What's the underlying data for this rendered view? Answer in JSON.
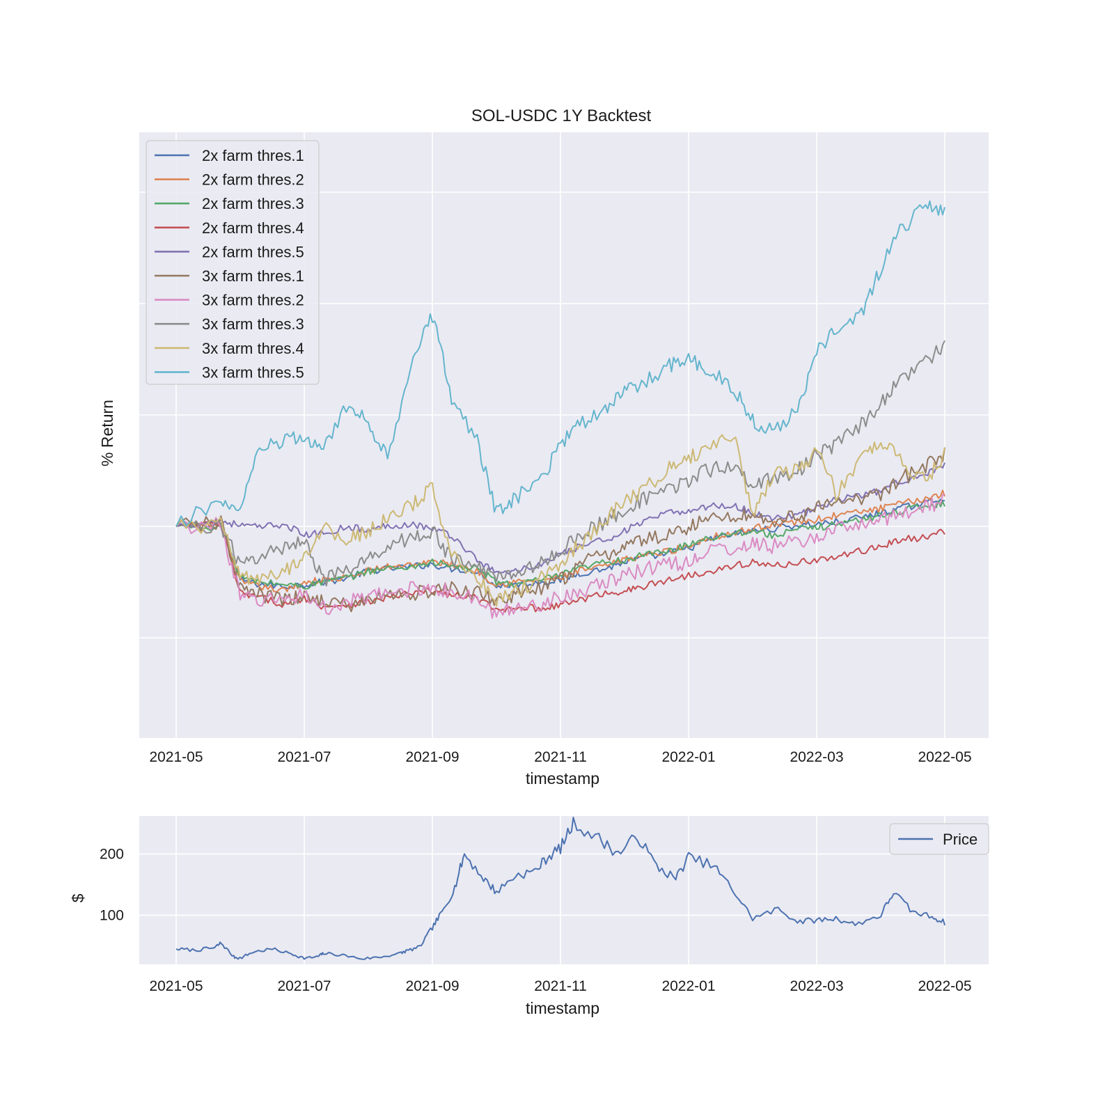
{
  "chart_data": [
    {
      "type": "line",
      "title": "SOL-USDC 1Y Backtest",
      "xlabel": "timestamp",
      "ylabel": "% Return",
      "x_tick_labels": [
        "2021-05",
        "2021-07",
        "2021-09",
        "2021-11",
        "2022-01",
        "2022-03",
        "2022-05"
      ],
      "y_tick_labels": [],
      "grid": true,
      "legend_position": "top-left",
      "note_values": "relative index, y tick labels not printed (start = 0)",
      "x_months": [
        0,
        0.7,
        1,
        1.3,
        1.7,
        2,
        2.3,
        2.7,
        3,
        3.3,
        3.7,
        4,
        4.3,
        4.7,
        5,
        5.3,
        5.7,
        6,
        6.3,
        6.7,
        7,
        7.3,
        7.7,
        8,
        8.3,
        8.7,
        9,
        9.3,
        9.7,
        10,
        10.3,
        10.7,
        11,
        11.3,
        11.7,
        12
      ],
      "series": [
        {
          "name": "2x farm thres.1",
          "color": "#4c72b0",
          "values": [
            0,
            0.05,
            -2.4,
            -2.6,
            -2.7,
            -2.6,
            -2.5,
            -2.3,
            -2.0,
            -1.9,
            -1.8,
            -1.7,
            -1.9,
            -2.0,
            -2.7,
            -2.6,
            -2.5,
            -2.4,
            -2.1,
            -1.9,
            -1.6,
            -1.4,
            -1.2,
            -1.0,
            -0.6,
            -0.35,
            -0.2,
            -0.1,
            0.05,
            0.1,
            0.2,
            0.4,
            0.6,
            0.8,
            1.05,
            1.3
          ]
        },
        {
          "name": "2x farm thres.2",
          "color": "#dd8452",
          "values": [
            0,
            0.1,
            -2.5,
            -2.7,
            -2.9,
            -2.5,
            -2.4,
            -2.3,
            -2.0,
            -1.8,
            -1.7,
            -1.6,
            -1.7,
            -2.0,
            -2.6,
            -2.5,
            -2.4,
            -2.3,
            -2.0,
            -1.8,
            -1.5,
            -1.3,
            -1.1,
            -0.9,
            -0.5,
            -0.3,
            -0.1,
            0.1,
            0.2,
            0.3,
            0.5,
            0.65,
            0.8,
            1.0,
            1.25,
            1.5
          ]
        },
        {
          "name": "2x farm thres.3",
          "color": "#55a868",
          "values": [
            0,
            -0.05,
            -2.3,
            -2.5,
            -2.6,
            -2.7,
            -2.5,
            -2.3,
            -2.0,
            -1.9,
            -1.8,
            -1.6,
            -1.8,
            -1.9,
            -2.5,
            -2.6,
            -2.4,
            -2.2,
            -1.9,
            -1.6,
            -1.5,
            -1.3,
            -1.1,
            -0.8,
            -0.5,
            -0.3,
            -0.2,
            -0.4,
            -0.15,
            -0.05,
            0.1,
            0.3,
            0.5,
            0.7,
            0.9,
            1.05
          ]
        },
        {
          "name": "2x farm thres.4",
          "color": "#c44e52",
          "values": [
            0,
            0.1,
            -3.0,
            -3.2,
            -3.5,
            -3.2,
            -3.6,
            -3.5,
            -3.4,
            -3.2,
            -3.0,
            -2.9,
            -3.1,
            -3.2,
            -3.8,
            -3.6,
            -3.7,
            -3.5,
            -3.3,
            -3.0,
            -2.9,
            -2.7,
            -2.4,
            -2.2,
            -2.0,
            -1.8,
            -1.6,
            -1.8,
            -1.6,
            -1.5,
            -1.4,
            -1.1,
            -0.9,
            -0.6,
            -0.5,
            -0.2
          ]
        },
        {
          "name": "2x farm thres.5",
          "color": "#8172b3",
          "values": [
            0,
            0.25,
            0.05,
            -0.05,
            0.1,
            -0.4,
            -0.3,
            0.0,
            -0.2,
            0.05,
            0.1,
            -0.1,
            -0.4,
            -1.5,
            -2.1,
            -2.0,
            -1.7,
            -1.3,
            -0.9,
            -0.6,
            -0.2,
            0.2,
            0.6,
            0.7,
            0.9,
            0.95,
            0.6,
            0.4,
            0.5,
            0.8,
            1.2,
            1.4,
            1.6,
            2.0,
            2.4,
            2.7
          ]
        },
        {
          "name": "3x farm thres.1",
          "color": "#937860",
          "values": [
            0,
            0.15,
            -2.8,
            -3.1,
            -3.3,
            -3.2,
            -3.3,
            -3.6,
            -3.3,
            -3.1,
            -3.0,
            -2.9,
            -2.8,
            -3.0,
            -3.3,
            -3.1,
            -2.8,
            -2.4,
            -1.7,
            -1.3,
            -0.9,
            -0.6,
            -0.4,
            0.0,
            0.3,
            0.5,
            0.5,
            0.2,
            0.5,
            0.8,
            1.0,
            1.3,
            1.5,
            2.1,
            2.7,
            3.2
          ]
        },
        {
          "name": "3x farm thres.2",
          "color": "#da8bc3",
          "values": [
            0,
            0.05,
            -3.2,
            -3.3,
            -3.3,
            -3.0,
            -3.7,
            -3.4,
            -3.2,
            -3.0,
            -2.8,
            -2.7,
            -3.0,
            -3.3,
            -4.0,
            -3.6,
            -3.5,
            -3.1,
            -2.9,
            -2.6,
            -2.2,
            -1.9,
            -1.7,
            -1.6,
            -1.1,
            -1.0,
            -0.8,
            -0.9,
            -0.7,
            -0.5,
            -0.1,
            0.0,
            0.3,
            0.6,
            0.9,
            1.1
          ]
        },
        {
          "name": "3x farm thres.3",
          "color": "#8c8c8c",
          "values": [
            0,
            0.05,
            -1.8,
            -1.3,
            -1.0,
            -0.5,
            -2.4,
            -2.0,
            -1.5,
            -0.8,
            -0.5,
            -0.2,
            -1.5,
            -1.8,
            -2.3,
            -2.0,
            -1.7,
            -1.1,
            -0.4,
            0.2,
            0.8,
            1.2,
            1.6,
            2.1,
            2.5,
            2.8,
            1.9,
            2.1,
            2.5,
            3.2,
            3.6,
            4.6,
            5.5,
            6.6,
            7.5,
            8.0
          ]
        },
        {
          "name": "3x farm thres.4",
          "color": "#ccb974",
          "values": [
            0,
            0.05,
            -2.2,
            -2.5,
            -2.0,
            -1.3,
            -0.1,
            -0.6,
            -0.2,
            0.3,
            1.0,
            1.7,
            -1.2,
            -2.3,
            -3.3,
            -2.9,
            -2.3,
            -1.6,
            -0.8,
            0.3,
            1.1,
            1.7,
            2.6,
            3.0,
            3.6,
            4.2,
            0.5,
            2.3,
            2.5,
            3.4,
            1.5,
            3.0,
            3.9,
            3.0,
            2.0,
            3.2
          ]
        },
        {
          "name": "3x farm thres.5",
          "color": "#64b5cd",
          "values": [
            0,
            1.2,
            0.6,
            3.5,
            3.8,
            4.0,
            3.5,
            5.5,
            4.6,
            3.2,
            7.5,
            9.5,
            5.8,
            3.8,
            0.6,
            1.3,
            2.1,
            3.7,
            4.6,
            5.3,
            6.0,
            6.5,
            7.2,
            7.7,
            6.9,
            6.3,
            4.7,
            4.3,
            5.2,
            7.8,
            8.9,
            9.6,
            11.6,
            13.2,
            14.5,
            14.0
          ]
        }
      ]
    },
    {
      "type": "line",
      "title": "",
      "xlabel": "timestamp",
      "ylabel": "$",
      "x_tick_labels": [
        "2021-05",
        "2021-07",
        "2021-09",
        "2021-11",
        "2022-01",
        "2022-03",
        "2022-05"
      ],
      "y_ticks": [
        100,
        200
      ],
      "ylim": [
        20,
        262
      ],
      "grid": true,
      "legend_position": "top-right",
      "x_months": [
        0,
        0.3,
        0.6,
        0.7,
        0.9,
        1.0,
        1.2,
        1.5,
        1.8,
        2.0,
        2.2,
        2.3,
        2.6,
        2.9,
        3.2,
        3.5,
        3.6,
        3.8,
        4.0,
        4.15,
        4.35,
        4.5,
        4.8,
        5.0,
        5.3,
        5.6,
        5.8,
        6.0,
        6.2,
        6.6,
        6.9,
        7.2,
        7.5,
        7.8,
        8.0,
        8.4,
        8.7,
        9.0,
        9.4,
        9.7,
        10.0,
        10.3,
        10.6,
        11.0,
        11.2,
        11.5,
        11.8,
        12.0
      ],
      "series": [
        {
          "name": "Price",
          "color": "#4c72b0",
          "values": [
            45,
            43,
            47,
            55,
            32,
            30,
            40,
            45,
            37,
            30,
            32,
            38,
            35,
            29,
            32,
            38,
            42,
            48,
            80,
            105,
            145,
            200,
            160,
            138,
            165,
            172,
            195,
            210,
            250,
            225,
            200,
            230,
            180,
            160,
            195,
            180,
            140,
            95,
            110,
            90,
            92,
            95,
            85,
            100,
            138,
            105,
            98,
            88
          ]
        }
      ]
    }
  ]
}
